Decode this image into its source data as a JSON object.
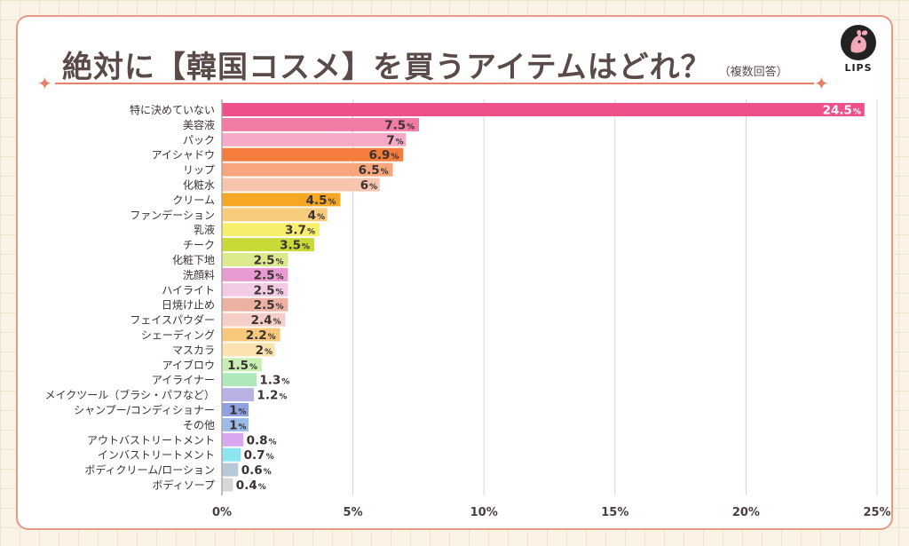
{
  "title": "絶対に【韓国コスメ】を買うアイテムはどれ？",
  "subtitle": "（複数回答）",
  "logo_text": "LIPS",
  "chart_data": {
    "type": "bar",
    "orientation": "horizontal",
    "x_ticks": [
      "0%",
      "5%",
      "10%",
      "15%",
      "20%",
      "25%"
    ],
    "xlim": [
      0,
      25
    ],
    "unit": "%",
    "grid": "vertical",
    "categories": [
      "特に決めていない",
      "美容液",
      "パック",
      "アイシャドウ",
      "リップ",
      "化粧水",
      "クリーム",
      "ファンデーション",
      "乳液",
      "チーク",
      "化粧下地",
      "洗顔料",
      "ハイライト",
      "日焼け止め",
      "フェイスパウダー",
      "シェーディング",
      "マスカラ",
      "アイブロウ",
      "アイライナー",
      "メイクツール（ブラシ・パフなど）",
      "シャンプー/コンディショナー",
      "その他",
      "アウトバストリートメント",
      "インバストリートメント",
      "ボディクリーム/ローション",
      "ボディソープ"
    ],
    "values": [
      24.5,
      7.5,
      7,
      6.9,
      6.5,
      6,
      4.5,
      4,
      3.7,
      3.5,
      2.5,
      2.5,
      2.5,
      2.5,
      2.4,
      2.2,
      2,
      1.5,
      1.3,
      1.2,
      1,
      1,
      0.8,
      0.7,
      0.6,
      0.4
    ],
    "value_labels": [
      "24.5",
      "7.5",
      "7",
      "6.9",
      "6.5",
      "6",
      "4.5",
      "4",
      "3.7",
      "3.5",
      "2.5",
      "2.5",
      "2.5",
      "2.5",
      "2.4",
      "2.2",
      "2",
      "1.5",
      "1.3",
      "1.2",
      "1",
      "1",
      "0.8",
      "0.7",
      "0.6",
      "0.4"
    ],
    "colors": [
      "#f0508a",
      "#f27ba4",
      "#f7aac8",
      "#f47c3c",
      "#f7a57d",
      "#f7c4ad",
      "#f5a623",
      "#f8cc7d",
      "#f6ee6c",
      "#c8d938",
      "#dde98d",
      "#e89bd0",
      "#f2cbe7",
      "#ebb2a3",
      "#f5cfc7",
      "#f7c87c",
      "#fae3b0",
      "#c7efb3",
      "#aee8bb",
      "#b9b2e5",
      "#8fa1de",
      "#9dbbe8",
      "#d7a8ee",
      "#8ee5f2",
      "#b7c8d8",
      "#d7d7d7"
    ]
  }
}
